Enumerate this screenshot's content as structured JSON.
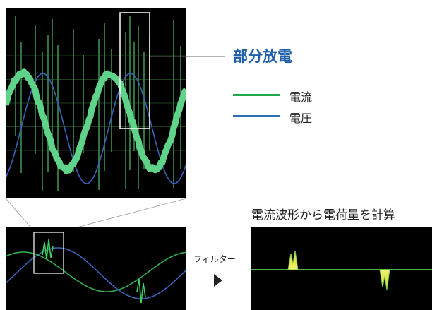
{
  "callout": {
    "title": "部分放電",
    "title_color": "#1f5fa8"
  },
  "legend": {
    "items": [
      {
        "label": "電流",
        "color": "#22a84a"
      },
      {
        "label": "電圧",
        "color": "#2e6db4"
      }
    ]
  },
  "filter_label": "フィルター",
  "result_caption": "電流波形から電荷量を計算",
  "colors": {
    "scope_bg": "#000000",
    "grid": "#3a6e3a",
    "current_wave": "#5fd38a",
    "voltage_wave": "#3a63b8",
    "pd_spike": "#8fe0a0",
    "highlight_box": "#ffffff",
    "pulse_fill": "#e6e44a",
    "baseline": "#4caf50",
    "connector": "#888888"
  }
}
